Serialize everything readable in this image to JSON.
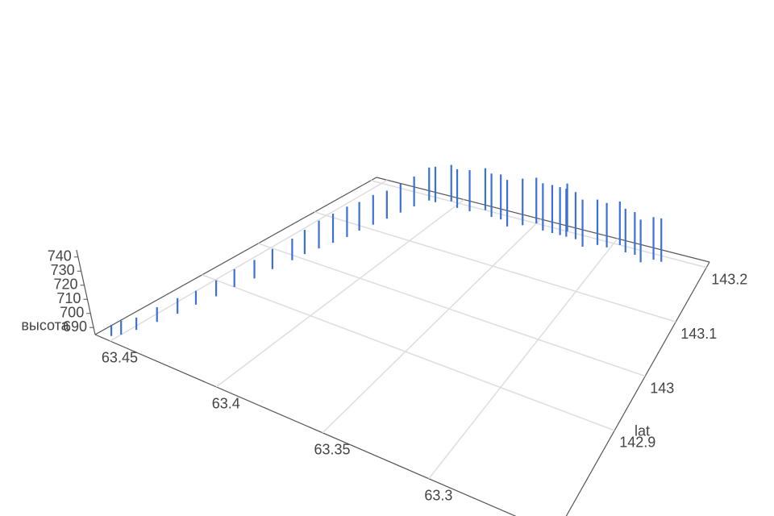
{
  "chart_data": {
    "type": "scatter3d",
    "y_label": "lat",
    "z_label": "высота",
    "color": "#3b6fd9",
    "grid": true,
    "xlim": [
      63.24,
      63.457
    ],
    "ylim": [
      142.71,
      143.21
    ],
    "zlim": [
      685,
      745
    ],
    "xticks": [
      63.45,
      63.4,
      63.35,
      63.3
    ],
    "yticks": [
      142.9,
      143,
      143.1,
      143.2
    ],
    "zticks": [
      690,
      700,
      710,
      720,
      730,
      740
    ],
    "x": [
      63.452,
      63.45,
      63.448,
      63.446,
      63.444,
      63.443,
      63.441,
      63.44,
      63.438,
      63.437,
      63.435,
      63.434,
      63.432,
      63.43,
      63.428,
      63.427,
      63.425,
      63.423,
      63.421,
      63.419,
      63.416,
      63.412,
      63.405,
      63.398,
      63.39,
      63.383,
      63.376,
      63.37,
      63.363,
      63.356,
      63.35,
      63.343,
      63.337,
      63.332,
      63.33,
      63.328,
      63.322,
      63.315,
      63.308,
      63.302,
      63.296,
      63.29,
      63.284,
      63.278,
      63.272,
      63.267
    ],
    "y": [
      142.72,
      142.73,
      142.75,
      142.78,
      142.81,
      142.84,
      142.87,
      142.9,
      142.93,
      142.96,
      142.99,
      143.01,
      143.03,
      143.05,
      143.07,
      143.09,
      143.11,
      143.13,
      143.15,
      143.17,
      143.19,
      143.19,
      143.2,
      143.19,
      143.19,
      143.2,
      143.19,
      143.19,
      143.18,
      143.19,
      143.2,
      143.19,
      143.19,
      143.19,
      143.2,
      143.19,
      143.19,
      143.18,
      143.19,
      143.19,
      143.2,
      143.19,
      143.19,
      143.18,
      143.19,
      143.19
    ],
    "z": [
      693,
      695,
      694,
      696,
      697,
      696,
      698,
      700,
      701,
      703,
      705,
      708,
      712,
      714,
      716,
      715,
      717,
      716,
      718,
      720,
      725,
      728,
      730,
      732,
      735,
      737,
      738,
      740,
      741,
      742,
      742,
      743,
      744,
      744,
      745,
      744,
      743,
      742,
      741,
      740,
      740,
      739,
      738,
      737,
      738,
      739
    ]
  }
}
